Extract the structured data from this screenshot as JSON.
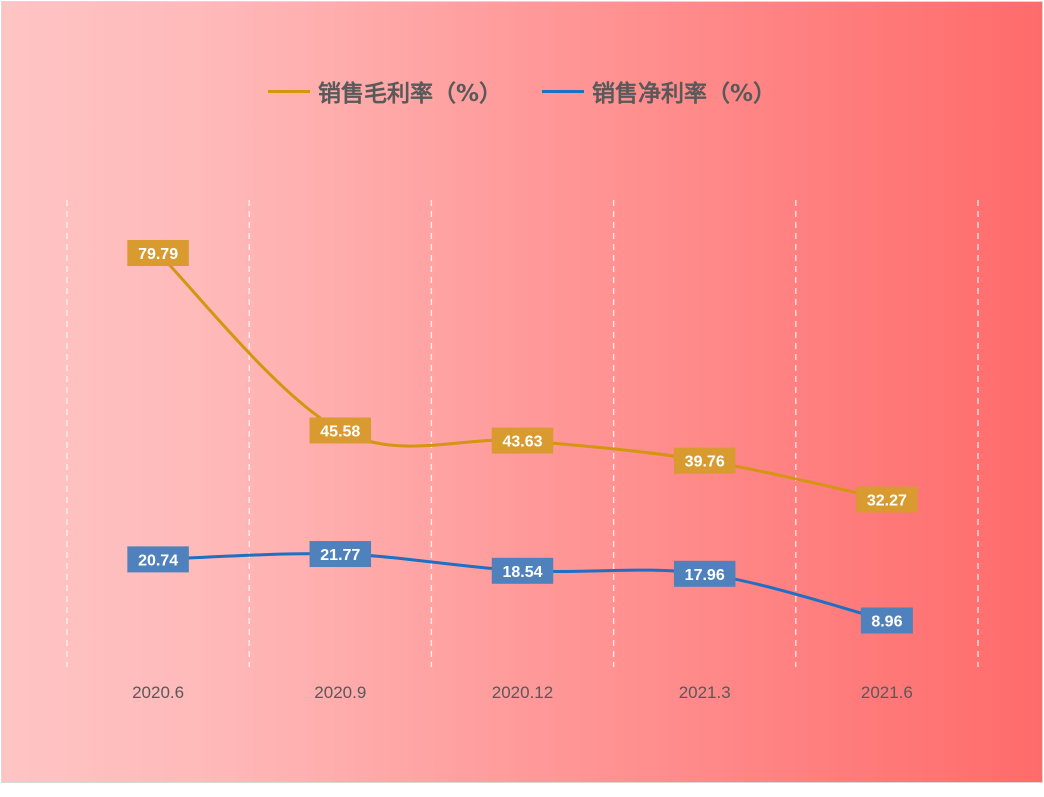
{
  "chart_data": {
    "type": "line",
    "title": "",
    "xlabel": "",
    "ylabel": "",
    "categories": [
      "2020.6",
      "2020.9",
      "2020.12",
      "2021.3",
      "2021.6"
    ],
    "ylim": [
      0,
      90
    ],
    "grid": "vertical dashed",
    "legend_position": "top-center",
    "series": [
      {
        "name": "销售毛利率（%）",
        "color": "#d4950f",
        "label_bg": "#d99a2f",
        "values": [
          79.79,
          45.58,
          43.63,
          39.76,
          32.27
        ],
        "labels": [
          "79.79",
          "45.58",
          "43.63",
          "39.76",
          "32.27"
        ]
      },
      {
        "name": "销售净利率（%）",
        "color": "#1f6fc4",
        "label_bg": "#4f82bd",
        "values": [
          20.74,
          21.77,
          18.54,
          17.96,
          8.96
        ],
        "labels": [
          "20.74",
          "21.77",
          "18.54",
          "17.96",
          "8.96"
        ]
      }
    ]
  }
}
